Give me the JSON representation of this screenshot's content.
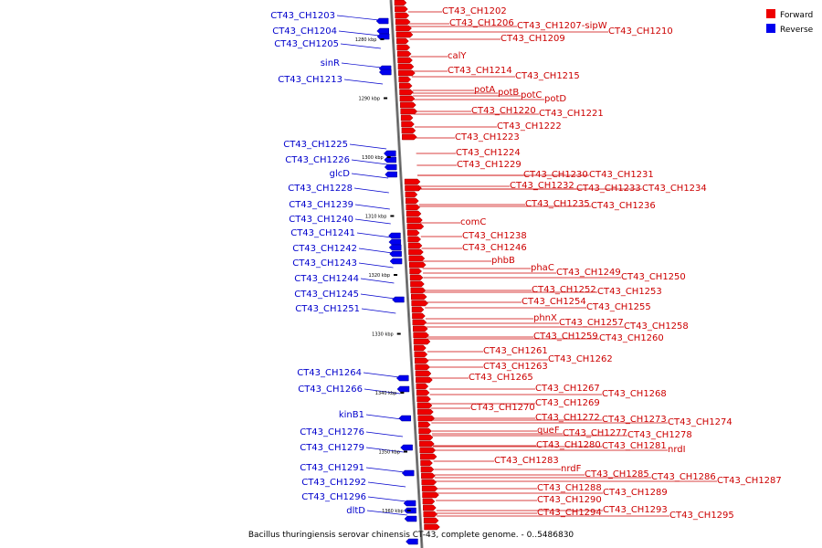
{
  "caption": "Bacillus thuringiensis serovar chinensis CT-43, complete genome. - 0..5486830",
  "legend": [
    {
      "label": "Forward",
      "color": "#ee0000"
    },
    {
      "label": "Reverse",
      "color": "#0000ee"
    }
  ],
  "ticks": [
    "1280 kbp",
    "1290 kbp",
    "1300 kbp",
    "1310 kbp",
    "1320 kbp",
    "1330 kbp",
    "1340 kbp",
    "1350 kbp",
    "1360 kbp"
  ],
  "forward_labels": [
    "CT43_CH1202",
    "CT43_CH1206",
    "CT43_CH1207-sipW",
    "CT43_CH1210",
    "CT43_CH1209",
    "calY",
    "CT43_CH1214",
    "CT43_CH1215",
    "potA",
    "potB",
    "potC",
    "potD",
    "CT43_CH1220",
    "CT43_CH1221",
    "CT43_CH1222",
    "CT43_CH1223",
    "CT43_CH1224",
    "CT43_CH1229",
    "CT43_CH1230",
    "CT43_CH1231",
    "CT43_CH1232",
    "CT43_CH1233",
    "CT43_CH1234",
    "CT43_CH1235",
    "CT43_CH1236",
    "comC",
    "CT43_CH1238",
    "CT43_CH1246",
    "phbB",
    "phaC",
    "CT43_CH1249",
    "CT43_CH1250",
    "CT43_CH1252",
    "CT43_CH1253",
    "CT43_CH1254",
    "CT43_CH1255",
    "phnX",
    "CT43_CH1257",
    "CT43_CH1258",
    "CT43_CH1259",
    "CT43_CH1260",
    "CT43_CH1261",
    "CT43_CH1262",
    "CT43_CH1263",
    "CT43_CH1265",
    "CT43_CH1267",
    "CT43_CH1268",
    "CT43_CH1269",
    "CT43_CH1270",
    "CT43_CH1272",
    "CT43_CH1273",
    "CT43_CH1274",
    "queF",
    "CT43_CH1277",
    "CT43_CH1278",
    "CT43_CH1280",
    "CT43_CH1281",
    "nrdI",
    "CT43_CH1283",
    "nrdF",
    "CT43_CH1285",
    "CT43_CH1286",
    "CT43_CH1287",
    "CT43_CH1288",
    "CT43_CH1289",
    "CT43_CH1290",
    "CT43_CH1294",
    "CT43_CH1293",
    "CT43_CH1295"
  ],
  "reverse_labels": [
    "CT43_CH1203",
    "CT43_CH1204",
    "CT43_CH1205",
    "sinR",
    "CT43_CH1213",
    "CT43_CH1225",
    "CT43_CH1226",
    "glcD",
    "CT43_CH1228",
    "CT43_CH1239",
    "CT43_CH1240",
    "CT43_CH1241",
    "CT43_CH1242",
    "CT43_CH1243",
    "CT43_CH1244",
    "CT43_CH1245",
    "CT43_CH1251",
    "CT43_CH1264",
    "CT43_CH1266",
    "kinB1",
    "CT43_CH1276",
    "CT43_CH1279",
    "CT43_CH1291",
    "CT43_CH1292",
    "CT43_CH1296",
    "dltD"
  ]
}
